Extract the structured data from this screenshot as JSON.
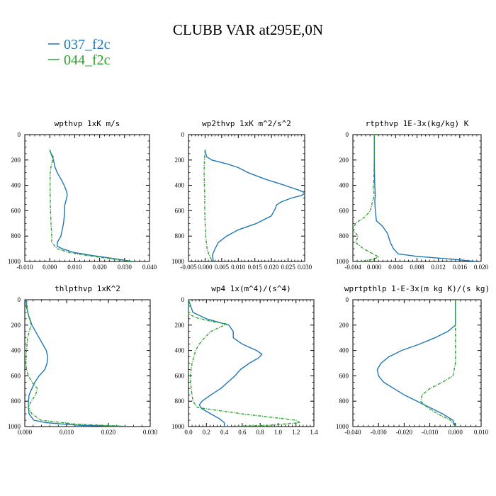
{
  "chart_data": {
    "title": "CLUBB VAR at295E,0N",
    "legend": [
      "037_f2c",
      "044_f2c"
    ],
    "colors": {
      "037_f2c": "#1f77b4",
      "044_f2c": "#2ca02c"
    },
    "panels": [
      {
        "type": "line",
        "title": "wpthvp  1xK m/s",
        "xlim": [
          -0.01,
          0.04
        ],
        "ylim": [
          1000,
          0
        ],
        "xticks": [
          "-0.010",
          "0.000",
          "0.010",
          "0.020",
          "0.030",
          "0.040"
        ],
        "yticks": [
          "0",
          "200",
          "400",
          "600",
          "800",
          "1000"
        ],
        "series": [
          {
            "name": "037_f2c",
            "y": [
              120,
              150,
              200,
              250,
              300,
              350,
              400,
              450,
              480,
              520,
              560,
              600,
              650,
              700,
              750,
              800,
              850,
              880,
              900,
              930,
              950,
              970,
              990,
              1000
            ],
            "x": [
              0.0,
              0.0005,
              0.0015,
              0.002,
              0.003,
              0.0045,
              0.0058,
              0.0068,
              0.007,
              0.0065,
              0.006,
              0.006,
              0.0058,
              0.0055,
              0.005,
              0.0045,
              0.003,
              0.003,
              0.005,
              0.01,
              0.016,
              0.023,
              0.03,
              0.033
            ]
          },
          {
            "name": "044_f2c",
            "y": [
              120,
              150,
              180,
              200,
              250,
              300,
              400,
              500,
              600,
              700,
              800,
              850,
              900,
              930,
              950,
              970,
              990,
              1000
            ],
            "x": [
              0.0,
              0.0007,
              0.0015,
              0.0012,
              0.0005,
              0.0002,
              0.0001,
              0.0002,
              0.0003,
              0.0005,
              0.0008,
              0.0008,
              0.003,
              0.008,
              0.014,
              0.021,
              0.029,
              0.033
            ]
          }
        ]
      },
      {
        "type": "line",
        "title": "wp2thvp  1xK m^2/s^2",
        "xlim": [
          -0.005,
          0.03
        ],
        "ylim": [
          1000,
          0
        ],
        "xticks": [
          "-0.005",
          "0.000",
          "0.005",
          "0.010",
          "0.015",
          "0.020",
          "0.025",
          "0.030"
        ],
        "yticks": [
          "0",
          "200",
          "400",
          "600",
          "800",
          "1000"
        ],
        "series": [
          {
            "name": "037_f2c",
            "y": [
              120,
              150,
              175,
              200,
              230,
              260,
              300,
              350,
              400,
              440,
              460,
              480,
              500,
              530,
              555,
              580,
              640,
              700,
              750,
              800,
              850,
              900,
              950,
              1000
            ],
            "x": [
              0.0,
              0.0002,
              0.0005,
              0.002,
              0.0065,
              0.01,
              0.013,
              0.018,
              0.024,
              0.0285,
              0.0302,
              0.029,
              0.026,
              0.023,
              0.0215,
              0.0212,
              0.02,
              0.0155,
              0.01,
              0.0065,
              0.004,
              0.003,
              0.0022,
              0.0025
            ]
          },
          {
            "name": "044_f2c",
            "y": [
              120,
              200,
              300,
              400,
              500,
              600,
              700,
              800,
              900,
              950,
              980,
              1000
            ],
            "x": [
              0.0,
              -0.0002,
              -0.0003,
              -0.0002,
              -0.0001,
              -0.0001,
              0.0,
              0.0002,
              0.0006,
              0.0012,
              0.0018,
              0.0022
            ]
          }
        ]
      },
      {
        "type": "line",
        "title": "rtpthvp  1E-3x(kg/kg) K",
        "xlim": [
          -0.004,
          0.02
        ],
        "ylim": [
          1000,
          0
        ],
        "xticks": [
          "-0.004",
          "0.000",
          "0.004",
          "0.008",
          "0.012",
          "0.016",
          "0.020"
        ],
        "yticks": [
          "0",
          "200",
          "400",
          "600",
          "800",
          "1000"
        ],
        "series": [
          {
            "name": "037_f2c",
            "y": [
              0,
              200,
              400,
              480,
              520,
              600,
              680,
              720,
              780,
              850,
              900,
              940,
              960,
              980,
              1000
            ],
            "x": [
              0.0,
              0.0,
              0.0001,
              0.0002,
              0.0001,
              0.0002,
              0.0004,
              0.0015,
              0.0025,
              0.003,
              0.0036,
              0.0045,
              0.008,
              0.014,
              0.019
            ]
          },
          {
            "name": "044_f2c",
            "y": [
              0,
              200,
              380,
              420,
              480,
              520,
              560,
              600,
              650,
              700,
              750,
              800,
              850,
              900,
              950,
              965,
              980,
              990,
              1000
            ],
            "x": [
              0.0,
              0.0,
              -0.0001,
              -0.0002,
              0.0,
              -0.0003,
              -0.0005,
              -0.0007,
              -0.0018,
              -0.0035,
              -0.004,
              -0.003,
              -0.0035,
              -0.002,
              0.0002,
              0.0008,
              0.0,
              -0.0012,
              -0.0025
            ]
          }
        ]
      },
      {
        "type": "line",
        "title": "thlpthvp  1xK^2",
        "xlim": [
          0.0,
          0.035
        ],
        "ylim": [
          1000,
          0
        ],
        "xticks": [
          "0.000",
          "0.010",
          "0.020",
          "0.030"
        ],
        "yticks": [
          "0",
          "200",
          "400",
          "600",
          "800",
          "1000"
        ],
        "series": [
          {
            "name": "037_f2c",
            "y": [
              0,
              60,
              120,
              200,
              300,
              400,
              450,
              500,
              550,
              600,
              650,
              700,
              750,
              800,
              850,
              900,
              950,
              970,
              990,
              1000
            ],
            "x": [
              0.0003,
              0.0005,
              0.001,
              0.002,
              0.004,
              0.006,
              0.0064,
              0.0062,
              0.0056,
              0.004,
              0.0028,
              0.002,
              0.0012,
              0.001,
              0.001,
              0.0012,
              0.0025,
              0.006,
              0.015,
              0.03
            ]
          },
          {
            "name": "044_f2c",
            "y": [
              0,
              100,
              200,
              250,
              300,
              400,
              500,
              550,
              600,
              650,
              700,
              750,
              800,
              850,
              900,
              950,
              980,
              1000
            ],
            "x": [
              0.0005,
              0.0008,
              0.0018,
              0.0012,
              0.0008,
              0.0005,
              0.0003,
              0.0005,
              0.001,
              0.002,
              0.0035,
              0.003,
              0.0018,
              0.001,
              0.002,
              0.0045,
              0.014,
              0.03
            ]
          }
        ]
      },
      {
        "type": "line",
        "title": "wp4  1x(m^4)/(s^4)",
        "xlim": [
          0.0,
          1.4
        ],
        "ylim": [
          1000,
          0
        ],
        "xticks": [
          "0.0",
          "0.2",
          "0.4",
          "0.6",
          "0.8",
          "1.0",
          "1.2",
          "1.4"
        ],
        "yticks": [
          "0",
          "200",
          "400",
          "600",
          "800",
          "1000"
        ],
        "series": [
          {
            "name": "037_f2c",
            "y": [
              0,
              100,
              150,
              200,
              250,
              300,
              350,
              400,
              430,
              460,
              500,
              550,
              600,
              650,
              700,
              750,
              800,
              830,
              860,
              900,
              940,
              970,
              1000
            ],
            "x": [
              0.0,
              0.05,
              0.2,
              0.45,
              0.5,
              0.5,
              0.6,
              0.76,
              0.82,
              0.78,
              0.68,
              0.58,
              0.52,
              0.44,
              0.36,
              0.25,
              0.15,
              0.12,
              0.15,
              0.25,
              0.35,
              0.4,
              0.4
            ]
          },
          {
            "name": "044_f2c",
            "y": [
              0,
              110,
              140,
              170,
              190,
              200,
              250,
              300,
              350,
              400,
              500,
              600,
              700,
              800,
              850,
              900,
              950,
              970,
              990,
              1000
            ],
            "x": [
              0.0,
              0.0,
              0.08,
              0.25,
              0.42,
              0.4,
              0.25,
              0.18,
              0.12,
              0.08,
              0.04,
              0.02,
              0.03,
              0.05,
              0.1,
              0.6,
              1.2,
              1.24,
              0.9,
              0.4
            ]
          }
        ]
      },
      {
        "type": "line",
        "title": "wprtpthlp  1-E-3x(m kg K)/(s kg)",
        "xlim": [
          -0.04,
          0.01
        ],
        "ylim": [
          1000,
          0
        ],
        "xticks": [
          "-0.040",
          "-0.030",
          "-0.020",
          "-0.010",
          "0.000",
          "0.010"
        ],
        "yticks": [
          "0",
          "200",
          "400",
          "600",
          "800",
          "1000"
        ],
        "series": [
          {
            "name": "037_f2c",
            "y": [
              0,
              200,
              250,
              300,
              350,
              400,
              450,
              500,
              550,
              600,
              650,
              700,
              750,
              800,
              850,
              900,
              950,
              1000
            ],
            "x": [
              0.0,
              0.0,
              -0.003,
              -0.008,
              -0.014,
              -0.021,
              -0.026,
              -0.029,
              -0.0305,
              -0.03,
              -0.028,
              -0.024,
              -0.02,
              -0.015,
              -0.01,
              -0.005,
              -0.001,
              0.0
            ]
          },
          {
            "name": "044_f2c",
            "y": [
              0,
              200,
              400,
              500,
              600,
              650,
              700,
              750,
              800,
              850,
              900,
              950,
              1000
            ],
            "x": [
              0.0,
              0.0,
              0.0,
              0.0,
              -0.001,
              -0.005,
              -0.01,
              -0.013,
              -0.0135,
              -0.011,
              -0.007,
              -0.002,
              0.0
            ]
          }
        ]
      }
    ]
  }
}
